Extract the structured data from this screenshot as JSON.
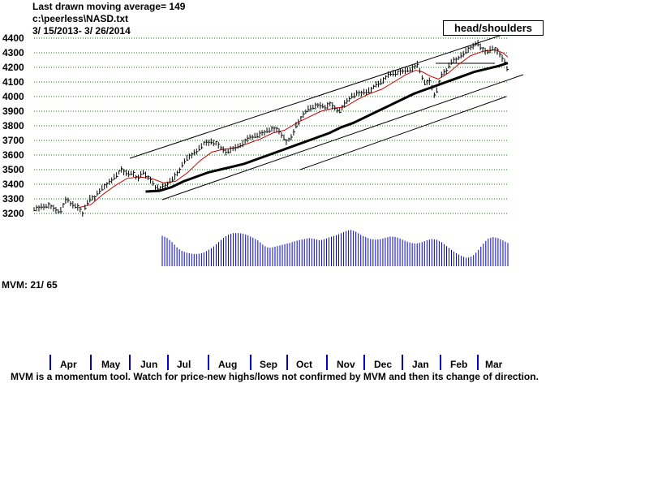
{
  "header": {
    "line1": "Last drawn moving average= 149",
    "line2": "c:\\peerless\\NASD.txt",
    "line3": " 3/ 15/2013-  3/ 26/2014"
  },
  "annotation": "head/shoulders",
  "mvm_label": "MVM: 21/ 65",
  "footer": "MVM is a momentum tool. Watch for price-new highs/lows not confirmed by MVM and then its change of direction.",
  "colors": {
    "bars": "#000000",
    "ma_short": "#cc0000",
    "ma_long": "#000000",
    "mvm": "#0000cc",
    "grid": "#008000",
    "month_tick": "#0000cc"
  },
  "chart_data": {
    "type": "line",
    "title": "",
    "ylim": [
      3200,
      4400
    ],
    "y_ticks": [
      "3200",
      "3300",
      "3400",
      "3500",
      "3600",
      "3700",
      "3800",
      "3900",
      "4000",
      "4100",
      "4200",
      "4300",
      "4400"
    ],
    "x_ticks": [
      "Apr",
      "May",
      "Jun",
      "Jul",
      "Aug",
      "Sep",
      "Oct",
      "Nov",
      "Dec",
      "Jan",
      "Feb",
      "Mar"
    ],
    "grid": true,
    "price_points": [
      [
        0,
        3230
      ],
      [
        10,
        3245
      ],
      [
        18,
        3255
      ],
      [
        25,
        3230
      ],
      [
        32,
        3210
      ],
      [
        40,
        3300
      ],
      [
        45,
        3270
      ],
      [
        55,
        3240
      ],
      [
        60,
        3200
      ],
      [
        68,
        3300
      ],
      [
        75,
        3310
      ],
      [
        80,
        3350
      ],
      [
        90,
        3400
      ],
      [
        100,
        3450
      ],
      [
        108,
        3500
      ],
      [
        115,
        3470
      ],
      [
        122,
        3480
      ],
      [
        128,
        3430
      ],
      [
        134,
        3490
      ],
      [
        140,
        3450
      ],
      [
        145,
        3420
      ],
      [
        150,
        3380
      ],
      [
        156,
        3370
      ],
      [
        162,
        3390
      ],
      [
        170,
        3430
      ],
      [
        178,
        3480
      ],
      [
        186,
        3560
      ],
      [
        194,
        3600
      ],
      [
        202,
        3630
      ],
      [
        210,
        3680
      ],
      [
        218,
        3690
      ],
      [
        226,
        3680
      ],
      [
        232,
        3640
      ],
      [
        238,
        3620
      ],
      [
        244,
        3640
      ],
      [
        250,
        3650
      ],
      [
        258,
        3680
      ],
      [
        266,
        3720
      ],
      [
        274,
        3730
      ],
      [
        282,
        3750
      ],
      [
        290,
        3770
      ],
      [
        300,
        3780
      ],
      [
        306,
        3740
      ],
      [
        312,
        3690
      ],
      [
        318,
        3720
      ],
      [
        324,
        3800
      ],
      [
        332,
        3870
      ],
      [
        340,
        3920
      ],
      [
        350,
        3940
      ],
      [
        360,
        3930
      ],
      [
        366,
        3950
      ],
      [
        372,
        3920
      ],
      [
        378,
        3900
      ],
      [
        384,
        3950
      ],
      [
        392,
        4000
      ],
      [
        400,
        4020
      ],
      [
        408,
        4030
      ],
      [
        416,
        4040
      ],
      [
        422,
        4080
      ],
      [
        430,
        4100
      ],
      [
        438,
        4150
      ],
      [
        446,
        4160
      ],
      [
        454,
        4170
      ],
      [
        462,
        4180
      ],
      [
        470,
        4200
      ],
      [
        474,
        4220
      ],
      [
        478,
        4160
      ],
      [
        484,
        4080
      ],
      [
        488,
        4120
      ],
      [
        492,
        4060
      ],
      [
        496,
        4000
      ],
      [
        500,
        4080
      ],
      [
        505,
        4160
      ],
      [
        510,
        4180
      ],
      [
        516,
        4240
      ],
      [
        522,
        4250
      ],
      [
        530,
        4290
      ],
      [
        536,
        4320
      ],
      [
        542,
        4340
      ],
      [
        548,
        4370
      ],
      [
        554,
        4330
      ],
      [
        560,
        4300
      ],
      [
        566,
        4330
      ],
      [
        572,
        4320
      ],
      [
        578,
        4270
      ],
      [
        582,
        4240
      ],
      [
        586,
        4180
      ]
    ],
    "ma_short_points": [
      [
        55,
        3240
      ],
      [
        70,
        3260
      ],
      [
        85,
        3330
      ],
      [
        100,
        3390
      ],
      [
        115,
        3440
      ],
      [
        130,
        3450
      ],
      [
        145,
        3440
      ],
      [
        160,
        3410
      ],
      [
        175,
        3420
      ],
      [
        190,
        3480
      ],
      [
        205,
        3560
      ],
      [
        220,
        3620
      ],
      [
        235,
        3640
      ],
      [
        250,
        3650
      ],
      [
        265,
        3680
      ],
      [
        280,
        3710
      ],
      [
        295,
        3750
      ],
      [
        310,
        3770
      ],
      [
        325,
        3820
      ],
      [
        340,
        3860
      ],
      [
        355,
        3900
      ],
      [
        370,
        3920
      ],
      [
        385,
        3930
      ],
      [
        400,
        3980
      ],
      [
        415,
        4020
      ],
      [
        430,
        4050
      ],
      [
        445,
        4100
      ],
      [
        460,
        4150
      ],
      [
        472,
        4180
      ],
      [
        480,
        4170
      ],
      [
        490,
        4140
      ],
      [
        500,
        4120
      ],
      [
        512,
        4160
      ],
      [
        525,
        4220
      ],
      [
        540,
        4280
      ],
      [
        555,
        4310
      ],
      [
        570,
        4320
      ],
      [
        580,
        4300
      ],
      [
        586,
        4270
      ]
    ],
    "ma_long_points": [
      [
        138,
        3350
      ],
      [
        155,
        3355
      ],
      [
        170,
        3380
      ],
      [
        185,
        3420
      ],
      [
        200,
        3450
      ],
      [
        215,
        3480
      ],
      [
        230,
        3500
      ],
      [
        245,
        3520
      ],
      [
        260,
        3540
      ],
      [
        275,
        3570
      ],
      [
        290,
        3600
      ],
      [
        305,
        3630
      ],
      [
        320,
        3660
      ],
      [
        335,
        3690
      ],
      [
        350,
        3720
      ],
      [
        365,
        3750
      ],
      [
        380,
        3790
      ],
      [
        395,
        3820
      ],
      [
        410,
        3860
      ],
      [
        425,
        3900
      ],
      [
        440,
        3940
      ],
      [
        455,
        3980
      ],
      [
        470,
        4020
      ],
      [
        485,
        4050
      ],
      [
        500,
        4080
      ],
      [
        515,
        4110
      ],
      [
        530,
        4140
      ],
      [
        545,
        4170
      ],
      [
        560,
        4190
      ],
      [
        575,
        4210
      ],
      [
        586,
        4230
      ]
    ],
    "mvm_values": [
      0.92,
      0.85,
      0.72,
      0.55,
      0.45,
      0.4,
      0.37,
      0.37,
      0.4,
      0.48,
      0.58,
      0.72,
      0.85,
      0.95,
      1.0,
      1.0,
      0.98,
      0.92,
      0.85,
      0.76,
      0.62,
      0.55,
      0.58,
      0.62,
      0.66,
      0.7,
      0.75,
      0.79,
      0.82,
      0.85,
      0.82,
      0.78,
      0.82,
      0.88,
      0.92,
      0.98,
      1.05,
      1.1,
      1.05,
      0.95,
      0.88,
      0.82,
      0.8,
      0.82,
      0.86,
      0.9,
      0.88,
      0.82,
      0.75,
      0.7,
      0.68,
      0.72,
      0.78,
      0.82,
      0.8,
      0.72,
      0.6,
      0.48,
      0.38,
      0.3,
      0.25,
      0.3,
      0.45,
      0.65,
      0.82,
      0.88,
      0.85,
      0.78,
      0.7
    ]
  }
}
